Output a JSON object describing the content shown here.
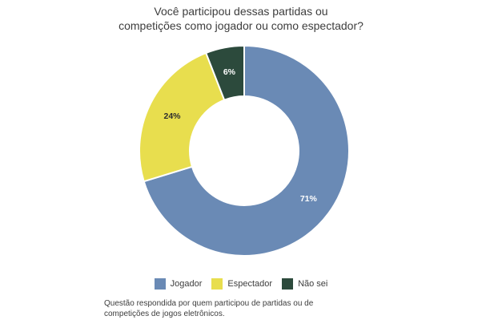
{
  "page": {
    "background": "#ffffff"
  },
  "chart_data": {
    "type": "pie",
    "subtype": "donut",
    "title": "Você participou dessas partidas ou\ncompetições como jogador ou como espectador?",
    "categories": [
      "Jogador",
      "Espectador",
      "Não sei"
    ],
    "values": [
      71,
      24,
      6
    ],
    "unit": "%",
    "start_angle_deg": 0,
    "direction": "clockwise",
    "legend_position": "bottom",
    "slices": [
      {
        "label": "Jogador",
        "value": 71,
        "display": "71%",
        "color": "#6a8ab5",
        "label_color": "#ffffff"
      },
      {
        "label": "Espectador",
        "value": 24,
        "display": "24%",
        "color": "#e8de4e",
        "label_color": "#2d2d2d"
      },
      {
        "label": "Não sei",
        "value": 6,
        "display": "6%",
        "color": "#2c4a3c",
        "label_color": "#ffffff"
      }
    ],
    "separator_color": "#ffffff",
    "footnote": "Questão respondida por quem participou de partidas ou de\ncompetições de jogos eletrônicos."
  }
}
